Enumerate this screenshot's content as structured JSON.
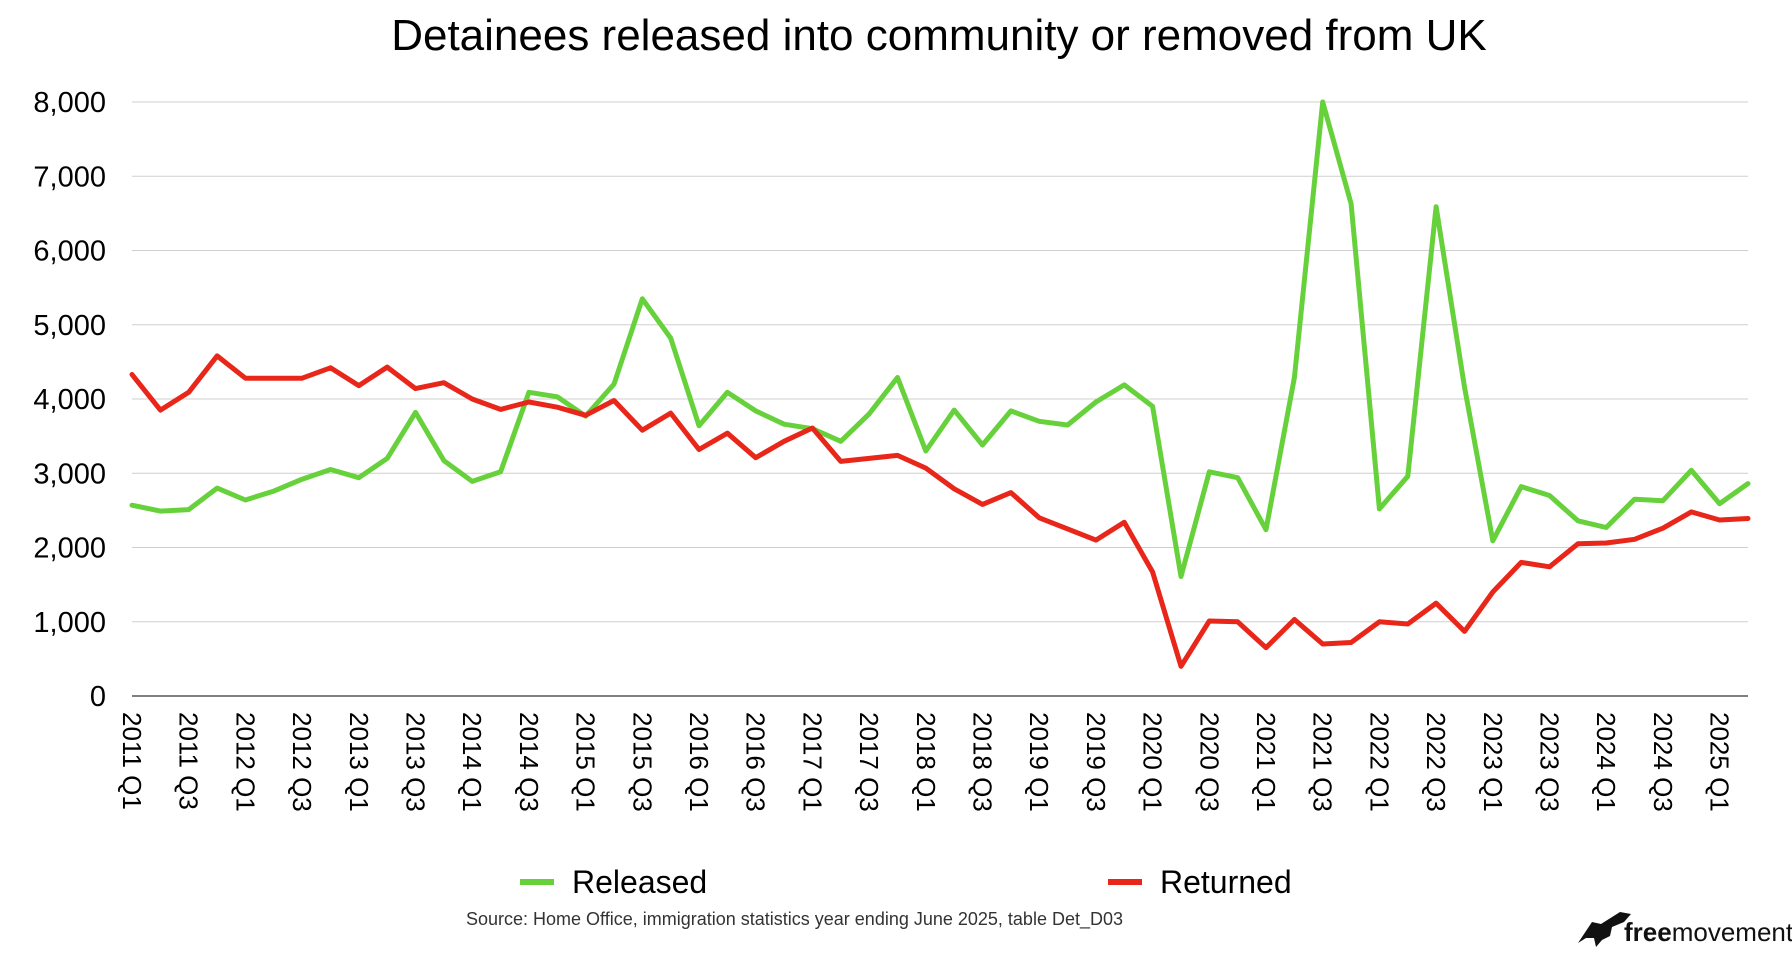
{
  "chart_data": {
    "type": "line",
    "title": "Detainees released into community or removed from UK",
    "source": "Source: Home Office, immigration statistics year ending June 2025, table Det_D03",
    "brand": {
      "bold": "free",
      "light": "movement"
    },
    "xlabel": "",
    "ylabel": "",
    "ylim": [
      0,
      8000
    ],
    "yticks": [
      0,
      1000,
      2000,
      3000,
      4000,
      5000,
      6000,
      7000,
      8000
    ],
    "ytick_labels": [
      "0",
      "1,000",
      "2,000",
      "3,000",
      "4,000",
      "5,000",
      "6,000",
      "7,000",
      "8,000"
    ],
    "x": [
      "2011 Q1",
      "2011 Q2",
      "2011 Q3",
      "2011 Q4",
      "2012 Q1",
      "2012 Q2",
      "2012 Q3",
      "2012 Q4",
      "2013 Q1",
      "2013 Q2",
      "2013 Q3",
      "2013 Q4",
      "2014 Q1",
      "2014 Q2",
      "2014 Q3",
      "2014 Q4",
      "2015 Q1",
      "2015 Q2",
      "2015 Q3",
      "2015 Q4",
      "2016 Q1",
      "2016 Q2",
      "2016 Q3",
      "2016 Q4",
      "2017 Q1",
      "2017 Q2",
      "2017 Q3",
      "2017 Q4",
      "2018 Q1",
      "2018 Q2",
      "2018 Q3",
      "2018 Q4",
      "2019 Q1",
      "2019 Q2",
      "2019 Q3",
      "2019 Q4",
      "2020 Q1",
      "2020 Q2",
      "2020 Q3",
      "2020 Q4",
      "2021 Q1",
      "2021 Q2",
      "2021 Q3",
      "2021 Q4",
      "2022 Q1",
      "2022 Q2",
      "2022 Q3",
      "2022 Q4",
      "2023 Q1",
      "2023 Q2",
      "2023 Q3",
      "2023 Q4",
      "2024 Q1",
      "2024 Q2",
      "2024 Q3",
      "2024 Q4",
      "2025 Q1",
      "2025 Q2"
    ],
    "xtick_labels": [
      "2011 Q1",
      "2011 Q3",
      "2012 Q1",
      "2012 Q3",
      "2013 Q1",
      "2013 Q3",
      "2014 Q1",
      "2014 Q3",
      "2015 Q1",
      "2015 Q3",
      "2016 Q1",
      "2016 Q3",
      "2017 Q1",
      "2017 Q3",
      "2018 Q1",
      "2018 Q3",
      "2019 Q1",
      "2019 Q3",
      "2020 Q1",
      "2020 Q3",
      "2021 Q1",
      "2021 Q3",
      "2022 Q1",
      "2022 Q3",
      "2023 Q1",
      "2023 Q3",
      "2024 Q1",
      "2024 Q3",
      "2025 Q1"
    ],
    "grid": true,
    "legend_position": "bottom",
    "series": [
      {
        "name": "Released",
        "color": "#66d13b",
        "values": [
          2570,
          2490,
          2510,
          2800,
          2640,
          2760,
          2920,
          3050,
          2940,
          3200,
          3820,
          3170,
          2890,
          3020,
          4090,
          4030,
          3770,
          4200,
          5350,
          4820,
          3640,
          4090,
          3840,
          3660,
          3600,
          3430,
          3800,
          4290,
          3300,
          3850,
          3380,
          3840,
          3700,
          3650,
          3960,
          4190,
          3900,
          1610,
          3020,
          2940,
          2240,
          4290,
          8000,
          6630,
          2520,
          2960,
          6590,
          4160,
          2090,
          2820,
          2700,
          2360,
          2270,
          2650,
          2630,
          3040,
          2590,
          2860
        ]
      },
      {
        "name": "Returned",
        "color": "#e8261a",
        "values": [
          4330,
          3850,
          4090,
          4580,
          4280,
          4280,
          4280,
          4420,
          4180,
          4430,
          4140,
          4220,
          4000,
          3860,
          3960,
          3890,
          3780,
          3980,
          3580,
          3810,
          3320,
          3540,
          3210,
          3430,
          3610,
          3160,
          3200,
          3240,
          3070,
          2790,
          2580,
          2740,
          2400,
          2250,
          2100,
          2340,
          1670,
          400,
          1010,
          1000,
          650,
          1030,
          700,
          720,
          1000,
          970,
          1250,
          870,
          1400,
          1800,
          1740,
          2050,
          2060,
          2110,
          2260,
          2480,
          2370,
          2390
        ]
      }
    ]
  }
}
